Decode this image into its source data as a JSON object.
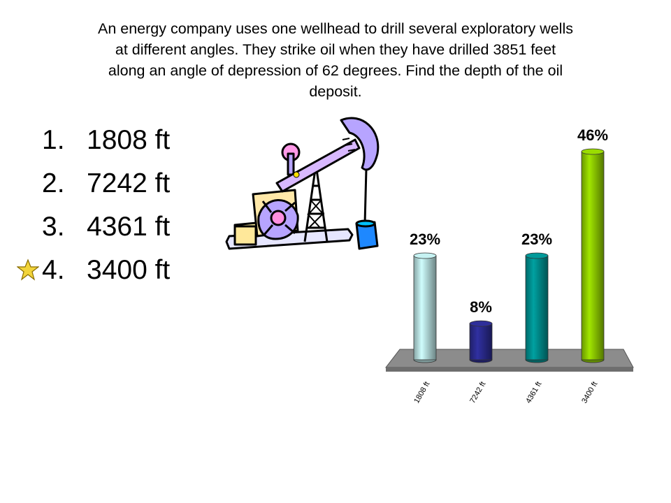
{
  "question": {
    "lines": [
      "An energy company uses one wellhead to drill several exploratory wells",
      "at different angles.  They strike oil when they have drilled 3851 feet",
      "along an angle of depression of 62 degrees.  Find the depth of the oil",
      "deposit."
    ]
  },
  "answers": [
    {
      "number": "1.",
      "text": "1808 ft"
    },
    {
      "number": "2.",
      "text": "7242 ft"
    },
    {
      "number": "3.",
      "text": "4361 ft"
    },
    {
      "number": "4.",
      "text": "3400 ft",
      "correct": true
    }
  ],
  "icons": {
    "correct_marker": "star-icon",
    "illustration": "oil-pumpjack-illustration"
  },
  "chart_data": {
    "type": "bar",
    "categories": [
      "1808 ft",
      "7242 ft",
      "4361 ft",
      "3400 ft"
    ],
    "values": [
      23,
      8,
      23,
      46
    ],
    "value_labels": [
      "23%",
      "8%",
      "23%",
      "46%"
    ],
    "ylim": [
      0,
      46
    ],
    "grid": false,
    "three_d": true,
    "colors": [
      "#b4dcdc",
      "#2a2a8c",
      "#008c8c",
      "#8cc800"
    ],
    "floor_color": "#8c8c8c"
  }
}
